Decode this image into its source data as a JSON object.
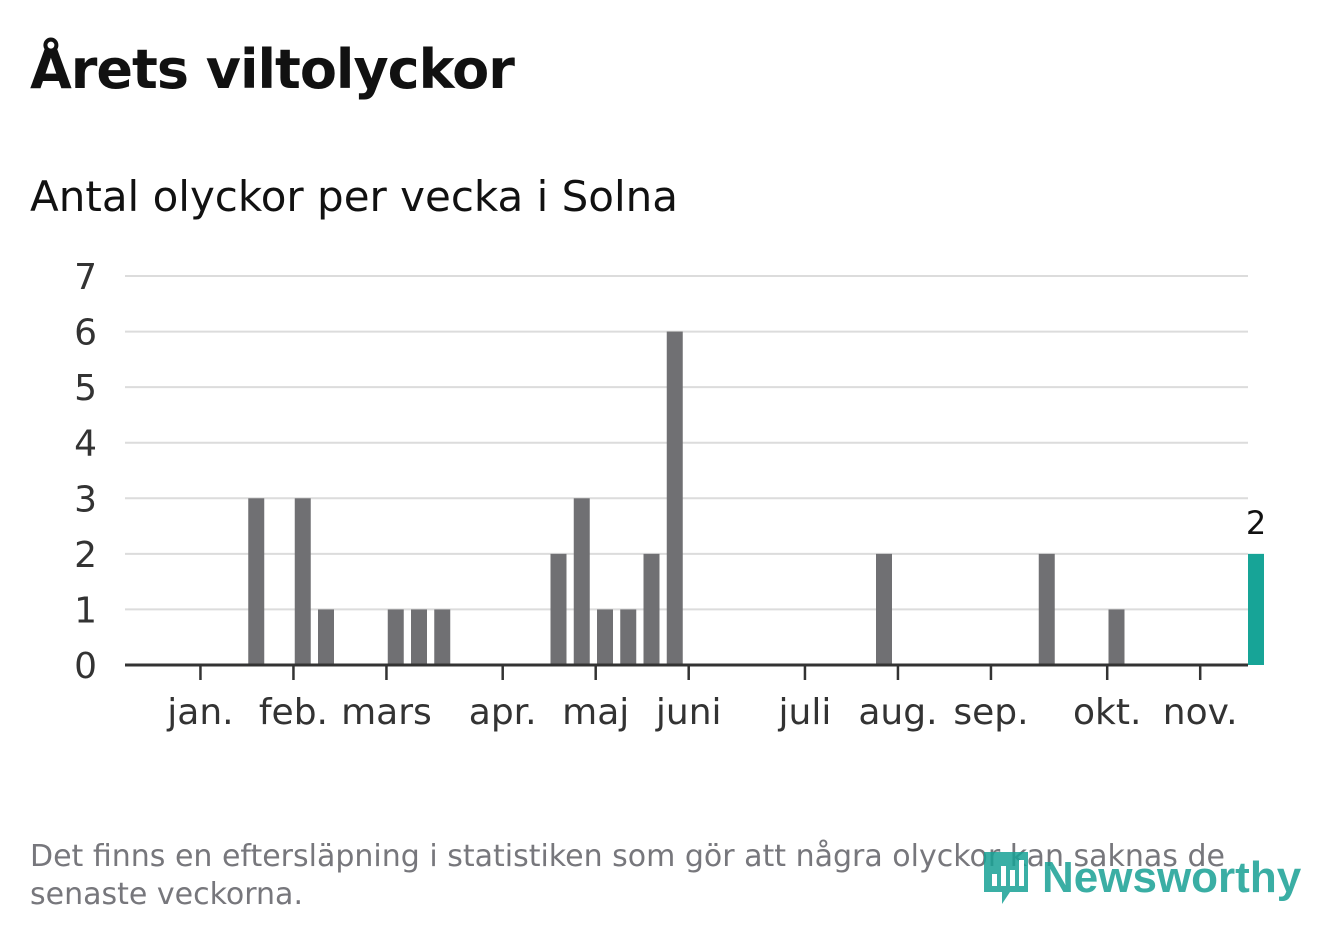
{
  "title": "Årets viltolyckor",
  "subtitle": "Antal olyckor per vecka i Solna",
  "footnote": "Det finns en eftersläpning i statistiken som gör att några olyckor kan saknas de senaste veckorna.",
  "logo": {
    "text": "Newsworthy",
    "icon": "newsworthy-logo-icon"
  },
  "colors": {
    "bar": "#707073",
    "highlight": "#17a497",
    "grid": "#dcdcdc",
    "axis": "#333333",
    "tick_text": "#333333"
  },
  "chart_data": {
    "type": "bar",
    "ylim": [
      0,
      7
    ],
    "yticks": [
      "0",
      "1",
      "2",
      "3",
      "4",
      "5",
      "6",
      "7"
    ],
    "x_is_week": true,
    "weeks": [
      1,
      2,
      3,
      4,
      5,
      6,
      7,
      8,
      9,
      10,
      11,
      12,
      13,
      14,
      15,
      16,
      17,
      18,
      19,
      20,
      21,
      22,
      23,
      24,
      25,
      26,
      27,
      28,
      29,
      30,
      31,
      32,
      33,
      34,
      35,
      36,
      37,
      38,
      39,
      40,
      41,
      42,
      43,
      44,
      45,
      46,
      47,
      48,
      49
    ],
    "values": [
      0,
      0,
      0,
      0,
      0,
      3,
      0,
      3,
      1,
      0,
      0,
      1,
      1,
      1,
      0,
      0,
      0,
      0,
      2,
      3,
      1,
      1,
      2,
      6,
      0,
      0,
      0,
      0,
      0,
      0,
      0,
      0,
      2,
      0,
      0,
      0,
      0,
      0,
      0,
      2,
      0,
      0,
      1,
      0,
      0,
      0,
      0,
      0,
      2
    ],
    "highlight_last": true,
    "highlight_label": "2",
    "month_labels": [
      {
        "label": "jan.",
        "week": 3.6
      },
      {
        "label": "feb.",
        "week": 7.6
      },
      {
        "label": "mars",
        "week": 11.6
      },
      {
        "label": "apr.",
        "week": 16.6
      },
      {
        "label": "maj",
        "week": 20.6
      },
      {
        "label": "juni",
        "week": 24.6
      },
      {
        "label": "juli",
        "week": 29.6
      },
      {
        "label": "aug.",
        "week": 33.6
      },
      {
        "label": "sep.",
        "week": 37.6
      },
      {
        "label": "okt.",
        "week": 42.6
      },
      {
        "label": "nov.",
        "week": 46.6
      }
    ]
  }
}
